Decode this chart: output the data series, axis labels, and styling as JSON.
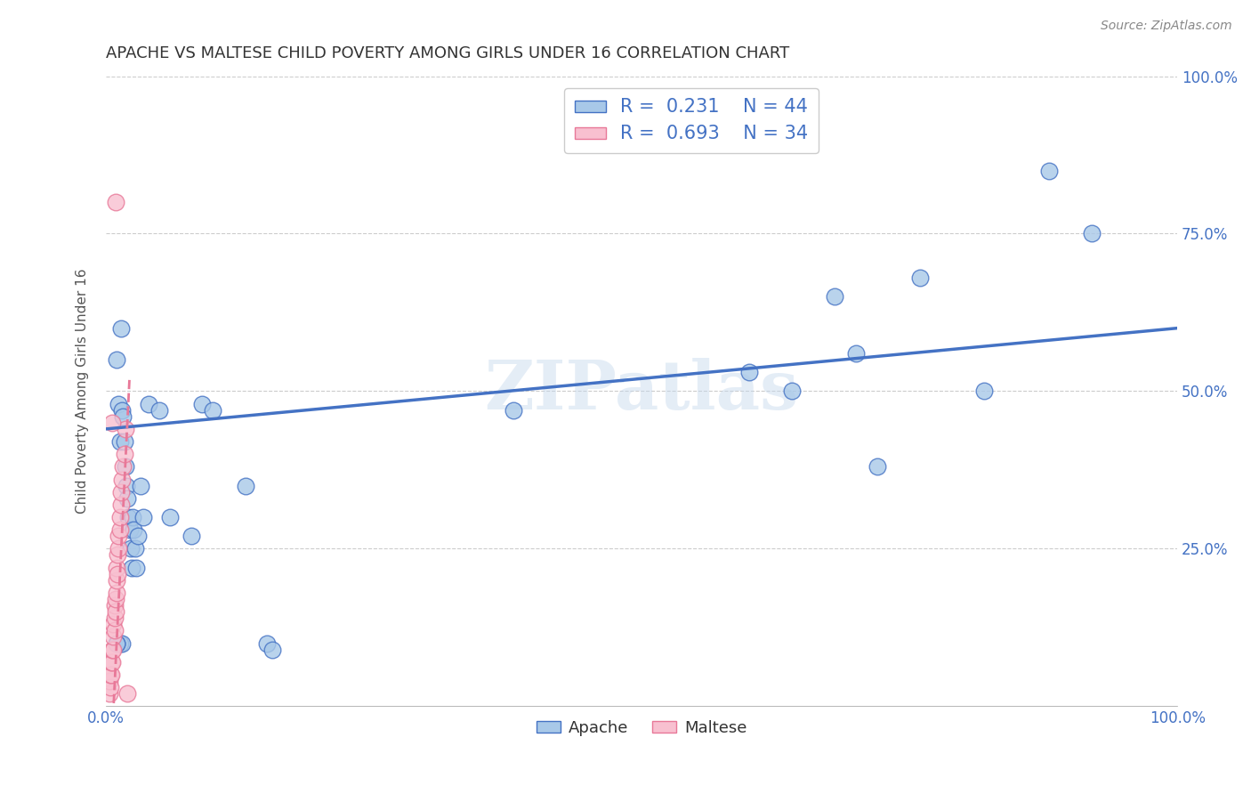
{
  "title": "APACHE VS MALTESE CHILD POVERTY AMONG GIRLS UNDER 16 CORRELATION CHART",
  "source": "Source: ZipAtlas.com",
  "ylabel": "Child Poverty Among Girls Under 16",
  "xlim": [
    0,
    1.0
  ],
  "ylim": [
    0,
    1.0
  ],
  "apache_R": "0.231",
  "apache_N": "44",
  "maltese_R": "0.693",
  "maltese_N": "34",
  "apache_color": "#a8c8e8",
  "maltese_color": "#f8c0d0",
  "apache_line_color": "#4472c4",
  "maltese_line_color": "#e87898",
  "watermark": "ZIPatlas",
  "apache_x": [
    0.01,
    0.012,
    0.013,
    0.014,
    0.015,
    0.016,
    0.017,
    0.018,
    0.019,
    0.02,
    0.021,
    0.022,
    0.023,
    0.024,
    0.025,
    0.026,
    0.027,
    0.028,
    0.03,
    0.032,
    0.035,
    0.04,
    0.05,
    0.06,
    0.08,
    0.09,
    0.1,
    0.13,
    0.15,
    0.155,
    0.38,
    0.6,
    0.64,
    0.68,
    0.7,
    0.72,
    0.76,
    0.82,
    0.88,
    0.92,
    0.013,
    0.015,
    0.01,
    0.01
  ],
  "apache_y": [
    0.55,
    0.48,
    0.42,
    0.6,
    0.47,
    0.46,
    0.42,
    0.38,
    0.35,
    0.33,
    0.3,
    0.28,
    0.25,
    0.22,
    0.3,
    0.28,
    0.25,
    0.22,
    0.27,
    0.35,
    0.3,
    0.48,
    0.47,
    0.3,
    0.27,
    0.48,
    0.47,
    0.35,
    0.1,
    0.09,
    0.47,
    0.53,
    0.5,
    0.65,
    0.56,
    0.38,
    0.68,
    0.5,
    0.85,
    0.75,
    0.1,
    0.1,
    0.1,
    0.1
  ],
  "maltese_x": [
    0.003,
    0.003,
    0.004,
    0.004,
    0.005,
    0.005,
    0.006,
    0.006,
    0.007,
    0.007,
    0.007,
    0.008,
    0.008,
    0.008,
    0.009,
    0.009,
    0.01,
    0.01,
    0.01,
    0.011,
    0.011,
    0.012,
    0.012,
    0.013,
    0.013,
    0.014,
    0.014,
    0.015,
    0.016,
    0.017,
    0.018,
    0.02,
    0.009,
    0.006
  ],
  "maltese_y": [
    0.02,
    0.04,
    0.03,
    0.05,
    0.05,
    0.07,
    0.07,
    0.09,
    0.09,
    0.11,
    0.13,
    0.12,
    0.14,
    0.16,
    0.15,
    0.17,
    0.18,
    0.2,
    0.22,
    0.21,
    0.24,
    0.25,
    0.27,
    0.28,
    0.3,
    0.32,
    0.34,
    0.36,
    0.38,
    0.4,
    0.44,
    0.02,
    0.8,
    0.45
  ]
}
